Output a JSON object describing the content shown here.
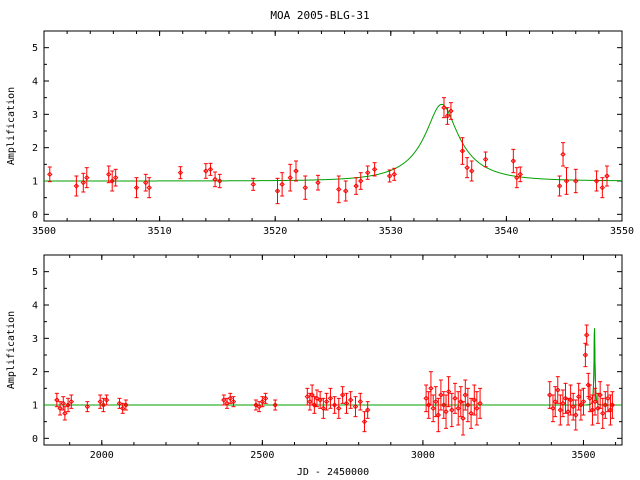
{
  "title": "MOA 2005-BLG-31",
  "xlabel": "JD - 2450000",
  "colors": {
    "data": "#ff0000",
    "model": "#00a000",
    "axes": "#000000"
  },
  "chart_data": [
    {
      "type": "scatter",
      "title": "MOA 2005-BLG-31",
      "xlabel": "",
      "ylabel": "Amplification",
      "xlim": [
        3500,
        3550
      ],
      "ylim": [
        -0.2,
        5.5
      ],
      "xticks": [
        "3500",
        "3510",
        "3520",
        "3530",
        "3540",
        "3550"
      ],
      "yticks": [
        "0",
        "1",
        "2",
        "3",
        "4",
        "5"
      ],
      "grid": false,
      "model": {
        "baseline": 1.0,
        "t0": 3534.4,
        "peak": 3.3,
        "u0": 0.31,
        "tE": 4.5
      },
      "series": [
        {
          "x": [
            3500.5,
            3502.8,
            3503.4,
            3503.7,
            3505.6,
            3505.9,
            3506.2,
            3508.0,
            3508.8,
            3509.1,
            3511.8,
            3514.0,
            3514.4,
            3514.8,
            3515.2,
            3518.1,
            3520.2,
            3520.6,
            3521.3,
            3521.8,
            3522.6,
            3523.7,
            3525.5,
            3526.1,
            3527.0,
            3527.4,
            3528.0,
            3528.6,
            3529.9,
            3530.3,
            3534.6,
            3534.9,
            3535.2,
            3536.2,
            3536.6,
            3537.0,
            3538.2,
            3540.6,
            3540.9,
            3541.2,
            3544.6,
            3544.9,
            3545.2,
            3546.0,
            3547.8,
            3548.3,
            3548.7
          ],
          "y": [
            1.2,
            0.85,
            0.95,
            1.1,
            1.2,
            1.0,
            1.1,
            0.8,
            0.95,
            0.8,
            1.25,
            1.3,
            1.35,
            1.05,
            1.0,
            0.9,
            0.7,
            0.9,
            1.1,
            1.3,
            0.8,
            0.95,
            0.75,
            0.7,
            0.85,
            1.0,
            1.25,
            1.35,
            1.15,
            1.2,
            3.2,
            2.95,
            3.1,
            1.9,
            1.4,
            1.3,
            1.65,
            1.6,
            1.1,
            1.2,
            0.85,
            1.8,
            1.0,
            1.0,
            1.0,
            0.8,
            1.15
          ],
          "err": [
            0.22,
            0.3,
            0.28,
            0.3,
            0.25,
            0.3,
            0.25,
            0.3,
            0.25,
            0.3,
            0.18,
            0.22,
            0.18,
            0.22,
            0.2,
            0.18,
            0.38,
            0.35,
            0.4,
            0.3,
            0.35,
            0.22,
            0.4,
            0.3,
            0.25,
            0.25,
            0.2,
            0.2,
            0.18,
            0.18,
            0.3,
            0.25,
            0.25,
            0.4,
            0.3,
            0.3,
            0.22,
            0.35,
            0.3,
            0.22,
            0.3,
            0.35,
            0.4,
            0.35,
            0.3,
            0.3,
            0.3
          ]
        }
      ]
    },
    {
      "type": "scatter",
      "title": "",
      "xlabel": "JD - 2450000",
      "ylabel": "Amplification",
      "xlim": [
        1820,
        3620
      ],
      "ylim": [
        -0.2,
        5.5
      ],
      "xticks": [
        "2000",
        "2500",
        "3000",
        "3500"
      ],
      "yticks": [
        "0",
        "1",
        "2",
        "3",
        "4",
        "5"
      ],
      "grid": false,
      "model": {
        "baseline": 1.0,
        "t0": 3534.4,
        "peak": 3.3,
        "u0": 0.31,
        "tE": 4.5
      },
      "series": [
        {
          "x": [
            1860,
            1870,
            1880,
            1885,
            1895,
            1905,
            1955,
            1995,
            2005,
            2015,
            2055,
            2065,
            2075,
            2380,
            2390,
            2400,
            2410,
            2480,
            2490,
            2500,
            2510,
            2540,
            2640,
            2648,
            2655,
            2662,
            2670,
            2680,
            2690,
            2700,
            2712,
            2725,
            2738,
            2750,
            2762,
            2775,
            2790,
            2805,
            2818,
            2828,
            3010,
            3018,
            3025,
            3032,
            3040,
            3048,
            3056,
            3065,
            3072,
            3080,
            3090,
            3100,
            3110,
            3118,
            3125,
            3132,
            3140,
            3150,
            3160,
            3168,
            3178,
            3395,
            3405,
            3412,
            3420,
            3428,
            3436,
            3444,
            3452,
            3460,
            3468,
            3476,
            3485,
            3492,
            3500,
            3506,
            3510,
            3515,
            3520,
            3528,
            3536,
            3545,
            3552,
            3560,
            3568,
            3576,
            3584,
            3590
          ],
          "y": [
            1.15,
            0.9,
            1.05,
            0.75,
            1.0,
            1.1,
            0.95,
            1.1,
            1.0,
            1.15,
            1.05,
            0.9,
            1.0,
            1.15,
            1.05,
            1.2,
            1.1,
            1.0,
            0.95,
            1.1,
            1.2,
            1.0,
            1.25,
            1.1,
            1.3,
            1.0,
            1.2,
            1.15,
            0.9,
            1.1,
            1.2,
            1.0,
            0.9,
            1.3,
            1.05,
            1.15,
            0.95,
            1.1,
            0.5,
            0.85,
            1.2,
            1.0,
            1.5,
            0.9,
            1.1,
            0.7,
            1.3,
            1.0,
            0.8,
            1.4,
            0.85,
            1.2,
            0.9,
            1.1,
            0.6,
            1.3,
            1.0,
            0.75,
            1.15,
            0.9,
            1.05,
            1.3,
            0.9,
            1.1,
            1.45,
            0.85,
            1.05,
            1.2,
            0.8,
            1.15,
            0.95,
            0.7,
            1.25,
            1.0,
            1.1,
            2.5,
            3.1,
            1.6,
            1.2,
            0.85,
            1.1,
            0.9,
            1.3,
            0.75,
            1.0,
            1.2,
            0.85,
            1.0
          ],
          "err": [
            0.2,
            0.2,
            0.2,
            0.2,
            0.2,
            0.2,
            0.15,
            0.2,
            0.2,
            0.15,
            0.15,
            0.15,
            0.15,
            0.15,
            0.15,
            0.15,
            0.15,
            0.15,
            0.15,
            0.15,
            0.15,
            0.15,
            0.25,
            0.25,
            0.3,
            0.25,
            0.25,
            0.25,
            0.3,
            0.25,
            0.3,
            0.25,
            0.3,
            0.25,
            0.3,
            0.25,
            0.3,
            0.25,
            0.3,
            0.25,
            0.4,
            0.4,
            0.5,
            0.4,
            0.45,
            0.5,
            0.45,
            0.4,
            0.5,
            0.45,
            0.5,
            0.45,
            0.5,
            0.45,
            0.5,
            0.45,
            0.5,
            0.45,
            0.45,
            0.5,
            0.45,
            0.4,
            0.4,
            0.45,
            0.4,
            0.45,
            0.4,
            0.45,
            0.4,
            0.45,
            0.4,
            0.45,
            0.4,
            0.45,
            0.4,
            0.35,
            0.3,
            0.35,
            0.4,
            0.45,
            0.4,
            0.45,
            0.4,
            0.45,
            0.4,
            0.4,
            0.45,
            0.4
          ]
        }
      ]
    }
  ]
}
